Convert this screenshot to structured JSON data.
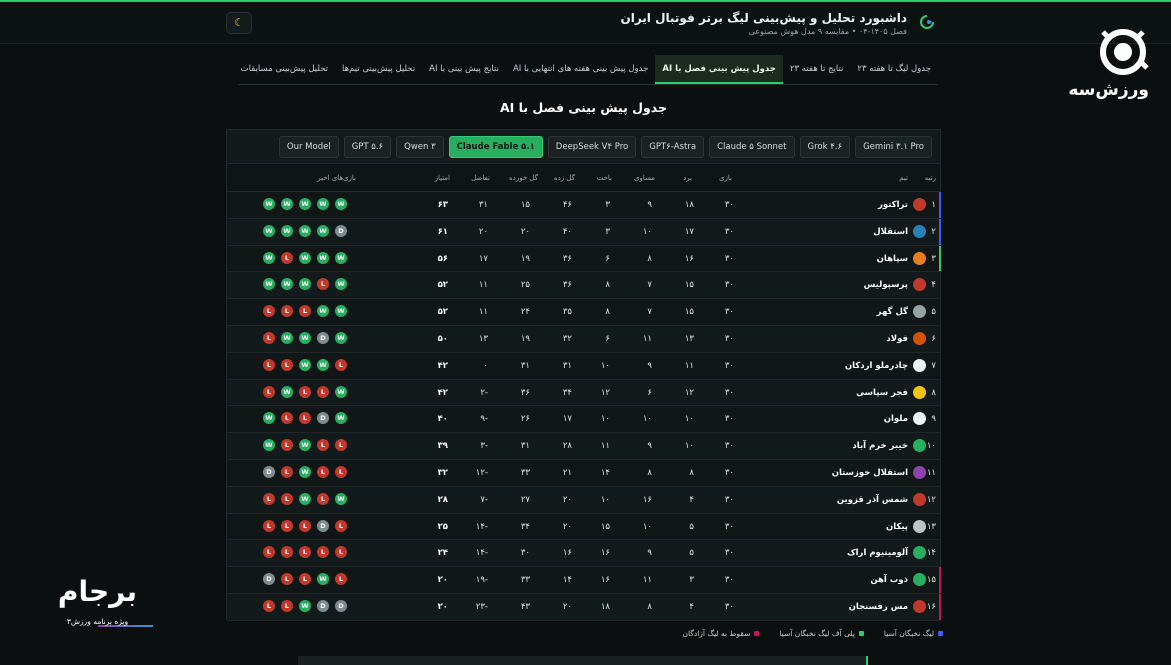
{
  "header": {
    "title": "داشبورد تحلیل و پیش‌بینی لیگ برتر فوتبال ایران",
    "subtitle": "فصل ۱۴۰۵-۰۴ • مقایسه ۹ مدل هوش مصنوعی",
    "theme_icon": "moon-icon"
  },
  "brand": {
    "name": "ورزش‌سه"
  },
  "tabs": [
    {
      "label": "جدول لیگ تا هفته ۲۳",
      "active": false
    },
    {
      "label": "نتایج تا هفته ۲۳",
      "active": false
    },
    {
      "label": "جدول پیش بینی فصل با AI",
      "active": true
    },
    {
      "label": "جدول پیش بینی هفته های انتهایی با AI",
      "active": false
    },
    {
      "label": "نتایج پیش بینی با AI",
      "active": false
    },
    {
      "label": "تحلیل پیش‌بینی تیم‌ها",
      "active": false
    },
    {
      "label": "تحلیل پیش‌بینی مسابقات",
      "active": false
    }
  ],
  "section_title": "جدول پیش بینی فصل با AI",
  "models": [
    {
      "label": "Gemini ۳.۱ Pro",
      "active": false
    },
    {
      "label": "Grok ۴.۶",
      "active": false
    },
    {
      "label": "Claude ۵ Sonnet",
      "active": false
    },
    {
      "label": "GPT۶-Astra",
      "active": false
    },
    {
      "label": "DeepSeek V۴ Pro",
      "active": false
    },
    {
      "label": "Claude Fable ۵.۱",
      "active": true
    },
    {
      "label": "Qwen ۳",
      "active": false
    },
    {
      "label": "GPT ۵.۶",
      "active": false
    },
    {
      "label": "Our Model",
      "active": false
    }
  ],
  "columns": {
    "rank": "رتبه",
    "team": "تیم",
    "played": "بازی",
    "won": "برد",
    "drawn": "مساوی",
    "lost": "باخت",
    "gf": "گل زده",
    "ga": "گل خورده",
    "gd": "تفاضل",
    "pts": "امتیاز",
    "form": "بازی‌های اخیر"
  },
  "colors": {
    "asia": "#3d5afe",
    "playoff": "#2ecc71",
    "relegation": "#c2185b",
    "accent": "#2ecc71"
  },
  "rows": [
    {
      "rank": "۱",
      "team": "تراکتور",
      "played": "۳۰",
      "won": "۱۸",
      "drawn": "۹",
      "lost": "۳",
      "gf": "۴۶",
      "ga": "۱۵",
      "gd": "۳۱",
      "pts": "۶۳",
      "form": [
        "W",
        "W",
        "W",
        "W",
        "W"
      ],
      "logo": "#c0392b",
      "zone": "asia"
    },
    {
      "rank": "۲",
      "team": "استقلال",
      "played": "۳۰",
      "won": "۱۷",
      "drawn": "۱۰",
      "lost": "۳",
      "gf": "۴۰",
      "ga": "۲۰",
      "gd": "۲۰",
      "pts": "۶۱",
      "form": [
        "D",
        "W",
        "W",
        "W",
        "W"
      ],
      "logo": "#2980b9",
      "zone": "asia"
    },
    {
      "rank": "۳",
      "team": "سپاهان",
      "played": "۳۰",
      "won": "۱۶",
      "drawn": "۸",
      "lost": "۶",
      "gf": "۳۶",
      "ga": "۱۹",
      "gd": "۱۷",
      "pts": "۵۶",
      "form": [
        "W",
        "W",
        "W",
        "L",
        "W"
      ],
      "logo": "#e67e22",
      "zone": "playoff"
    },
    {
      "rank": "۴",
      "team": "پرسپولیس",
      "played": "۳۰",
      "won": "۱۵",
      "drawn": "۷",
      "lost": "۸",
      "gf": "۳۶",
      "ga": "۲۵",
      "gd": "۱۱",
      "pts": "۵۲",
      "form": [
        "W",
        "L",
        "W",
        "W",
        "W"
      ],
      "logo": "#c0392b",
      "zone": ""
    },
    {
      "rank": "۵",
      "team": "گل گهر",
      "played": "۳۰",
      "won": "۱۵",
      "drawn": "۷",
      "lost": "۸",
      "gf": "۳۵",
      "ga": "۲۴",
      "gd": "۱۱",
      "pts": "۵۲",
      "form": [
        "W",
        "W",
        "L",
        "L",
        "L"
      ],
      "logo": "#95a5a6",
      "zone": ""
    },
    {
      "rank": "۶",
      "team": "فولاد",
      "played": "۳۰",
      "won": "۱۳",
      "drawn": "۱۱",
      "lost": "۶",
      "gf": "۳۲",
      "ga": "۱۹",
      "gd": "۱۳",
      "pts": "۵۰",
      "form": [
        "W",
        "D",
        "W",
        "W",
        "L"
      ],
      "logo": "#d35400",
      "zone": ""
    },
    {
      "rank": "۷",
      "team": "چادرملو اردکان",
      "played": "۳۰",
      "won": "۱۱",
      "drawn": "۹",
      "lost": "۱۰",
      "gf": "۳۱",
      "ga": "۳۱",
      "gd": "۰",
      "pts": "۴۲",
      "form": [
        "L",
        "W",
        "W",
        "L",
        "L"
      ],
      "logo": "#ecf0f1",
      "zone": ""
    },
    {
      "rank": "۸",
      "team": "فجر سپاسی",
      "played": "۳۰",
      "won": "۱۲",
      "drawn": "۶",
      "lost": "۱۲",
      "gf": "۳۴",
      "ga": "۳۶",
      "gd": "-۲",
      "pts": "۴۲",
      "form": [
        "W",
        "L",
        "L",
        "W",
        "L"
      ],
      "logo": "#f1c40f",
      "zone": ""
    },
    {
      "rank": "۹",
      "team": "ملوان",
      "played": "۳۰",
      "won": "۱۰",
      "drawn": "۱۰",
      "lost": "۱۰",
      "gf": "۱۷",
      "ga": "۲۶",
      "gd": "-۹",
      "pts": "۴۰",
      "form": [
        "W",
        "D",
        "L",
        "L",
        "W"
      ],
      "logo": "#ecf0f1",
      "zone": ""
    },
    {
      "rank": "۱۰",
      "team": "خیبر خرم آباد",
      "played": "۳۰",
      "won": "۱۰",
      "drawn": "۹",
      "lost": "۱۱",
      "gf": "۲۸",
      "ga": "۳۱",
      "gd": "-۳",
      "pts": "۳۹",
      "form": [
        "L",
        "L",
        "W",
        "L",
        "W"
      ],
      "logo": "#27ae60",
      "zone": ""
    },
    {
      "rank": "۱۱",
      "team": "استقلال خوزستان",
      "played": "۳۰",
      "won": "۸",
      "drawn": "۸",
      "lost": "۱۴",
      "gf": "۲۱",
      "ga": "۳۳",
      "gd": "-۱۲",
      "pts": "۳۲",
      "form": [
        "L",
        "L",
        "W",
        "L",
        "D"
      ],
      "logo": "#8e44ad",
      "zone": ""
    },
    {
      "rank": "۱۲",
      "team": "شمس آذر قزوین",
      "played": "۳۰",
      "won": "۴",
      "drawn": "۱۶",
      "lost": "۱۰",
      "gf": "۲۰",
      "ga": "۲۷",
      "gd": "-۷",
      "pts": "۲۸",
      "form": [
        "W",
        "L",
        "W",
        "L",
        "L"
      ],
      "logo": "#c0392b",
      "zone": ""
    },
    {
      "rank": "۱۳",
      "team": "پیکان",
      "played": "۳۰",
      "won": "۵",
      "drawn": "۱۰",
      "lost": "۱۵",
      "gf": "۲۰",
      "ga": "۳۴",
      "gd": "-۱۴",
      "pts": "۲۵",
      "form": [
        "L",
        "D",
        "L",
        "L",
        "L"
      ],
      "logo": "#bdc3c7",
      "zone": ""
    },
    {
      "rank": "۱۴",
      "team": "آلومینیوم اراک",
      "played": "۳۰",
      "won": "۵",
      "drawn": "۹",
      "lost": "۱۶",
      "gf": "۱۶",
      "ga": "۳۰",
      "gd": "-۱۴",
      "pts": "۲۴",
      "form": [
        "L",
        "L",
        "L",
        "L",
        "L"
      ],
      "logo": "#27ae60",
      "zone": ""
    },
    {
      "rank": "۱۵",
      "team": "ذوب آهن",
      "played": "۳۰",
      "won": "۳",
      "drawn": "۱۱",
      "lost": "۱۶",
      "gf": "۱۴",
      "ga": "۳۳",
      "gd": "-۱۹",
      "pts": "۲۰",
      "form": [
        "L",
        "W",
        "L",
        "L",
        "D"
      ],
      "logo": "#27ae60",
      "zone": "relegation"
    },
    {
      "rank": "۱۶",
      "team": "مس رفسنجان",
      "played": "۳۰",
      "won": "۴",
      "drawn": "۸",
      "lost": "۱۸",
      "gf": "۲۰",
      "ga": "۴۳",
      "gd": "-۲۳",
      "pts": "۲۰",
      "form": [
        "D",
        "D",
        "W",
        "L",
        "L"
      ],
      "logo": "#c0392b",
      "zone": "relegation"
    }
  ],
  "legend": [
    {
      "label": "لیگ نخبگان آسیا",
      "color": "#3d5afe"
    },
    {
      "label": "پلی آف لیگ نخبگان آسیا",
      "color": "#2ecc71"
    },
    {
      "label": "سقوط به لیگ آزادگان",
      "color": "#c2185b"
    }
  ],
  "promo": {
    "title": "برجام",
    "subtitle": "ویژه برنامه ورزش۳"
  }
}
